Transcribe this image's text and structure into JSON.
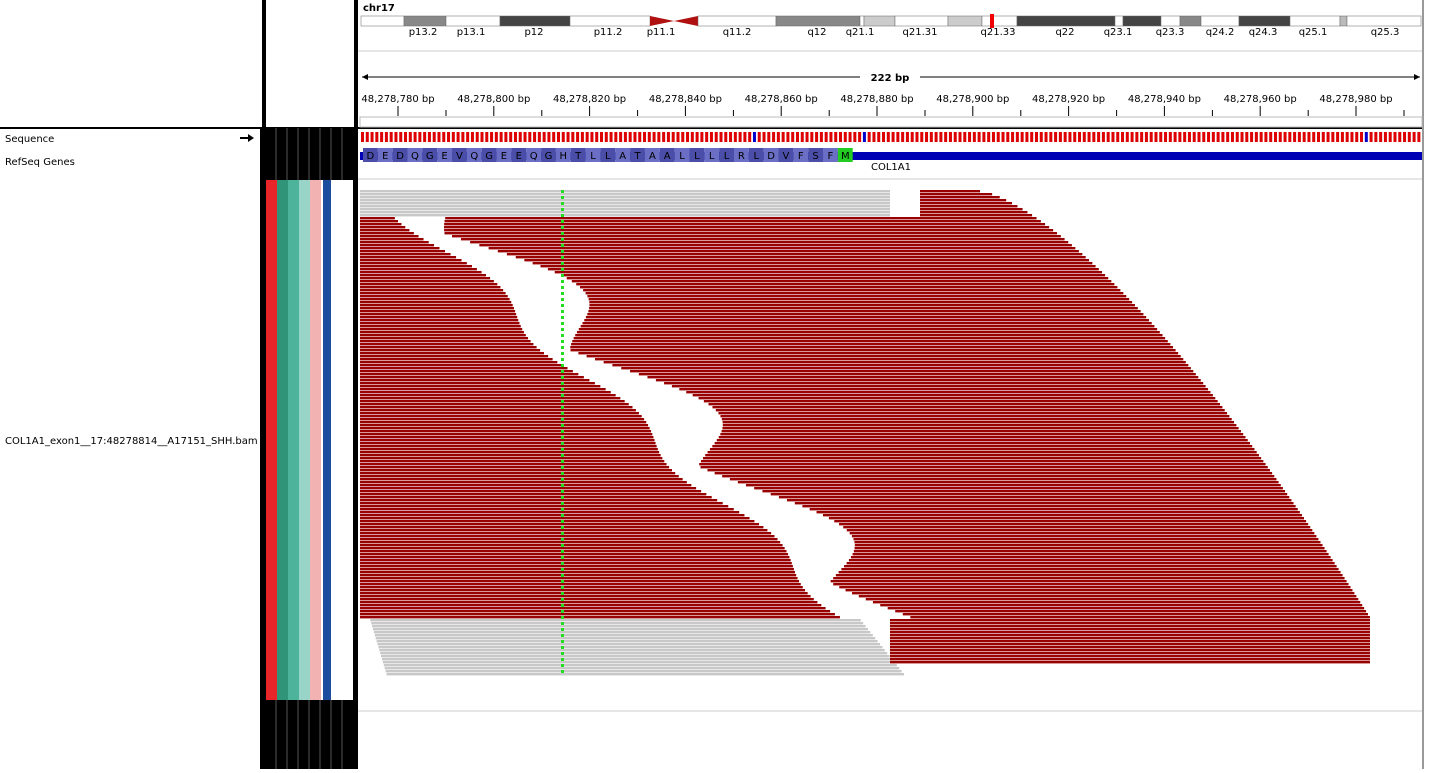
{
  "header": {
    "chromosome": "chr17",
    "bands": [
      "p13.2",
      "p13.1",
      "p12",
      "p11.2",
      "p11.1",
      "q11.2",
      "q12",
      "q21.1",
      "q21.31",
      "q21.33",
      "q22",
      "q23.1",
      "q23.3",
      "q24.2",
      "q24.3",
      "q25.1",
      "q25.3"
    ],
    "span": "222 bp",
    "ticks": [
      "48,278,780 bp",
      "48,278,800 bp",
      "48,278,820 bp",
      "48,278,840 bp",
      "48,278,860 bp",
      "48,278,880 bp",
      "48,278,900 bp",
      "48,278,920 bp",
      "48,278,940 bp",
      "48,278,960 bp",
      "48,278,980 bp"
    ]
  },
  "tracks": {
    "sequence": "Sequence",
    "refseq": "RefSeq Genes",
    "alignment": "COL1A1_exon1__17:48278814__A17151_SHH.bam"
  },
  "gene": {
    "name": "COL1A1",
    "amino_acids": [
      "D",
      "E",
      "D",
      "Q",
      "G",
      "E",
      "V",
      "Q",
      "G",
      "E",
      "E",
      "Q",
      "G",
      "H",
      "T",
      "L",
      "L",
      "A",
      "T",
      "A",
      "A",
      "L",
      "L",
      "L",
      "L",
      "R",
      "L",
      "D",
      "V",
      "F",
      "S",
      "F",
      "M"
    ]
  }
}
